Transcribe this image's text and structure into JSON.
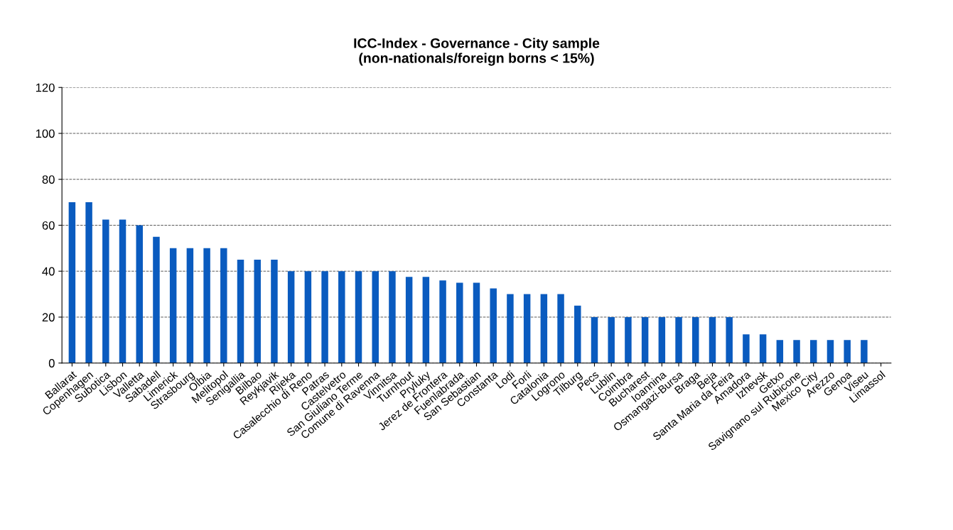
{
  "chart_data": {
    "type": "bar",
    "title": "ICC-Index - Governance - City sample\n(non-nationals/foreign borns < 15%)",
    "categories": [
      "Ballarat",
      "Copenhagen",
      "Subotica",
      "Lisbon",
      "Valletta",
      "Sabadell",
      "Limerick",
      "Strasbourg",
      "Olbia",
      "Melitopol",
      "Senigallia",
      "Bilbao",
      "Reykjavik",
      "Rijeka",
      "Casalecchio di Reno",
      "Patras",
      "Castelvetro",
      "San Giuliano Terme",
      "Comune di Ravenna",
      "Vinnitsa",
      "Turnhout",
      "Pryluky",
      "Jerez de Frontera",
      "Fuenlabrada",
      "San Sebastian",
      "Constanta",
      "Lodi",
      "Forli",
      "Catalonia",
      "Logrono",
      "Tilburg",
      "Pecs",
      "Lublin",
      "Coimbra",
      "Bucharest",
      "Ioannina",
      "Osmangazi-Bursa",
      "Braga",
      "Beja",
      "Santa Maria da Feira",
      "Amadora",
      "Izhevsk",
      "Getxo",
      "Savignano sul Rubicone",
      "Mexico City",
      "Arezzo",
      "Genoa",
      "Viseu",
      "Limassol"
    ],
    "values": [
      70,
      70,
      62.5,
      62.5,
      60,
      55,
      50,
      50,
      50,
      50,
      45,
      45,
      45,
      40,
      40,
      40,
      40,
      40,
      40,
      40,
      37.5,
      37.5,
      36,
      35,
      35,
      32.5,
      30,
      30,
      30,
      30,
      25,
      20,
      20,
      20,
      20,
      20,
      20,
      20,
      20,
      20,
      12.5,
      12.5,
      10,
      10,
      10,
      10,
      10,
      10,
      0
    ],
    "color": "#0a5bbf",
    "ylim": [
      0,
      120
    ],
    "yticks": [
      0,
      20,
      40,
      60,
      80,
      100,
      120
    ],
    "grid": "y"
  }
}
